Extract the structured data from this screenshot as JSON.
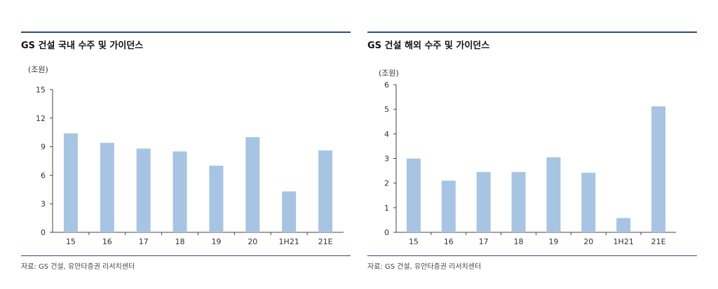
{
  "colors": {
    "bar": "#a8c4e3",
    "axis": "#444444",
    "rule": "#2f4a80"
  },
  "charts": [
    {
      "title": "GS 건설 국내 수주 및 가이던스",
      "unit": "(조원)",
      "source": "자료: GS 건설, 유안타증권 리서치센터"
    },
    {
      "title": "GS 건설 해외 수주 및 가이던스",
      "unit": "(조원)",
      "source": "자료: GS 건설, 유안타증권 리서치센터"
    }
  ],
  "chart_data": [
    {
      "type": "bar",
      "title": "GS 건설 국내 수주 및 가이던스",
      "ylabel": "(조원)",
      "xlabel": "",
      "categories": [
        "15",
        "16",
        "17",
        "18",
        "19",
        "20",
        "1H21",
        "21E"
      ],
      "values": [
        10.4,
        9.4,
        8.8,
        8.5,
        7.0,
        10.0,
        4.3,
        8.6
      ],
      "ylim": [
        0,
        15
      ],
      "yticks": [
        0,
        3,
        6,
        9,
        12,
        15
      ],
      "grid": false,
      "legend": "none"
    },
    {
      "type": "bar",
      "title": "GS 건설 해외 수주 및 가이던스",
      "ylabel": "(조원)",
      "xlabel": "",
      "categories": [
        "15",
        "16",
        "17",
        "18",
        "19",
        "20",
        "1H21",
        "21E"
      ],
      "values": [
        3.0,
        2.1,
        2.45,
        2.45,
        3.05,
        2.42,
        0.58,
        5.12
      ],
      "ylim": [
        0,
        6
      ],
      "yticks": [
        0,
        1,
        2,
        3,
        4,
        5,
        6
      ],
      "grid": false,
      "legend": "none"
    }
  ]
}
